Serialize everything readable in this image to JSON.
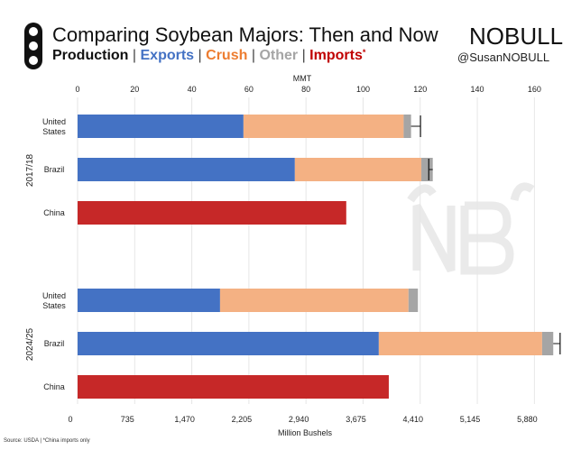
{
  "header": {
    "title": "Comparing Soybean Majors: Then and Now",
    "legend_items": [
      {
        "label": "Production",
        "color": "#111111"
      },
      {
        "label": "Exports",
        "color": "#4472C4"
      },
      {
        "label": "Crush",
        "color": "#ED7D31"
      },
      {
        "label": "Other",
        "color": "#A5A5A5"
      },
      {
        "label": "Imports",
        "color": "#C00000"
      }
    ],
    "separator": "|",
    "imports_marker": "*"
  },
  "brand": {
    "logo_text": "NOBULL",
    "handle": "@SusanNOBULL"
  },
  "footer": {
    "source": "Source: USDA | *China imports only"
  },
  "chart_data": {
    "type": "bar",
    "orientation": "horizontal",
    "stacked": true,
    "top_axis": {
      "label": "MMT",
      "ticks": [
        "0",
        "20",
        "40",
        "60",
        "80",
        "100",
        "120",
        "140",
        "160"
      ],
      "range": [
        0,
        170
      ]
    },
    "bottom_axis": {
      "label": "Million Bushels",
      "ticks": [
        "0",
        "735",
        "1,470",
        "2,205",
        "2,940",
        "3,675",
        "4,410",
        "5,145",
        "5,880"
      ],
      "range": [
        0,
        6247.5
      ]
    },
    "grid": "vertical",
    "groups": [
      {
        "label": "2017/18",
        "rows": [
          {
            "label_lines": [
              "United",
              "States"
            ],
            "exports": 58.1,
            "crush": 56.1,
            "other": 2.6,
            "production": 120.1
          },
          {
            "label_lines": [
              "Brazil"
            ],
            "exports": 76.1,
            "crush": 44.3,
            "other": 4.0,
            "production": 123.0
          },
          {
            "label_lines": [
              "China"
            ],
            "imports": 94.1
          }
        ]
      },
      {
        "label": "2024/25",
        "rows": [
          {
            "label_lines": [
              "United",
              "States"
            ],
            "exports": 49.9,
            "crush": 66.0,
            "other": 3.3
          },
          {
            "label_lines": [
              "Brazil"
            ],
            "exports": 105.5,
            "crush": 57.2,
            "other": 3.9,
            "production": 169.0
          },
          {
            "label_lines": [
              "China"
            ],
            "imports": 109.0
          }
        ]
      }
    ],
    "colors": {
      "exports": "#4472C4",
      "crush": "#F4B183",
      "other": "#A5A5A5",
      "imports": "#C62828",
      "production_marker": "#111111",
      "grid": "#E6E6E6"
    }
  }
}
